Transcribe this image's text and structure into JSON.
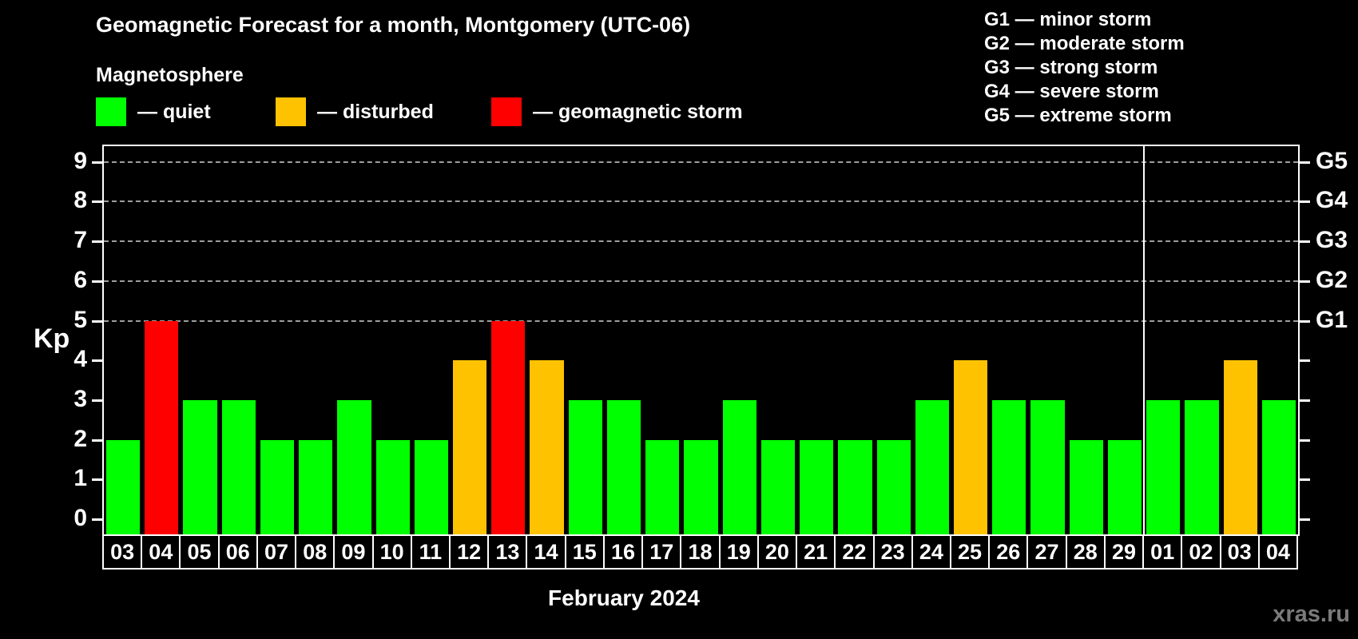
{
  "header": {
    "title": "Geomagnetic Forecast for a month, Montgomery (UTC-06)",
    "subtitle": "Magnetosphere"
  },
  "legend": {
    "items": [
      {
        "status": "quiet",
        "label": "— quiet",
        "color": "#00ff00"
      },
      {
        "status": "disturbed",
        "label": "— disturbed",
        "color": "#ffc200"
      },
      {
        "status": "storm",
        "label": "— geomagnetic storm",
        "color": "#ff0000"
      }
    ]
  },
  "g_scale_legend": {
    "items": [
      {
        "label": "G1 — minor storm"
      },
      {
        "label": "G2 — moderate storm"
      },
      {
        "label": "G3 — strong storm"
      },
      {
        "label": "G4 — severe storm"
      },
      {
        "label": "G5 — extreme storm"
      }
    ]
  },
  "chart_data": {
    "type": "bar",
    "title": "Geomagnetic Forecast for a month, Montgomery (UTC-06)",
    "ylabel": "Kp",
    "xlabel": "February 2024",
    "ylim": [
      0,
      9
    ],
    "yticks": [
      0,
      1,
      2,
      3,
      4,
      5,
      6,
      7,
      8,
      9
    ],
    "grid_levels": [
      5,
      6,
      7,
      8,
      9
    ],
    "grid": "dashed, only at storm levels G1-G5",
    "legend_position": "top",
    "right_axis_labels": [
      {
        "label": "G1",
        "kp": 5
      },
      {
        "label": "G2",
        "kp": 6
      },
      {
        "label": "G3",
        "kp": 7
      },
      {
        "label": "G4",
        "kp": 8
      },
      {
        "label": "G5",
        "kp": 9
      }
    ],
    "categories": [
      "03",
      "04",
      "05",
      "06",
      "07",
      "08",
      "09",
      "10",
      "11",
      "12",
      "13",
      "14",
      "15",
      "16",
      "17",
      "18",
      "19",
      "20",
      "21",
      "22",
      "23",
      "24",
      "25",
      "26",
      "27",
      "28",
      "29",
      "01",
      "02",
      "03",
      "04"
    ],
    "values": [
      2,
      5,
      3,
      3,
      2,
      2,
      3,
      2,
      2,
      4,
      5,
      4,
      3,
      3,
      2,
      2,
      3,
      2,
      2,
      2,
      2,
      3,
      4,
      3,
      3,
      2,
      2,
      3,
      3,
      4,
      3
    ],
    "statuses": [
      "quiet",
      "storm",
      "quiet",
      "quiet",
      "quiet",
      "quiet",
      "quiet",
      "quiet",
      "quiet",
      "disturbed",
      "storm",
      "disturbed",
      "quiet",
      "quiet",
      "quiet",
      "quiet",
      "quiet",
      "quiet",
      "quiet",
      "quiet",
      "quiet",
      "quiet",
      "disturbed",
      "quiet",
      "quiet",
      "quiet",
      "quiet",
      "quiet",
      "quiet",
      "disturbed",
      "quiet"
    ],
    "month_separator_after_index": 26
  },
  "colors": {
    "quiet": "#00ff00",
    "disturbed": "#ffc200",
    "storm": "#ff0000",
    "background": "#000000",
    "grid": "#9e9e9e",
    "axis": "#ffffff",
    "watermark": "#7a7a7a"
  },
  "watermark": "xras.ru"
}
